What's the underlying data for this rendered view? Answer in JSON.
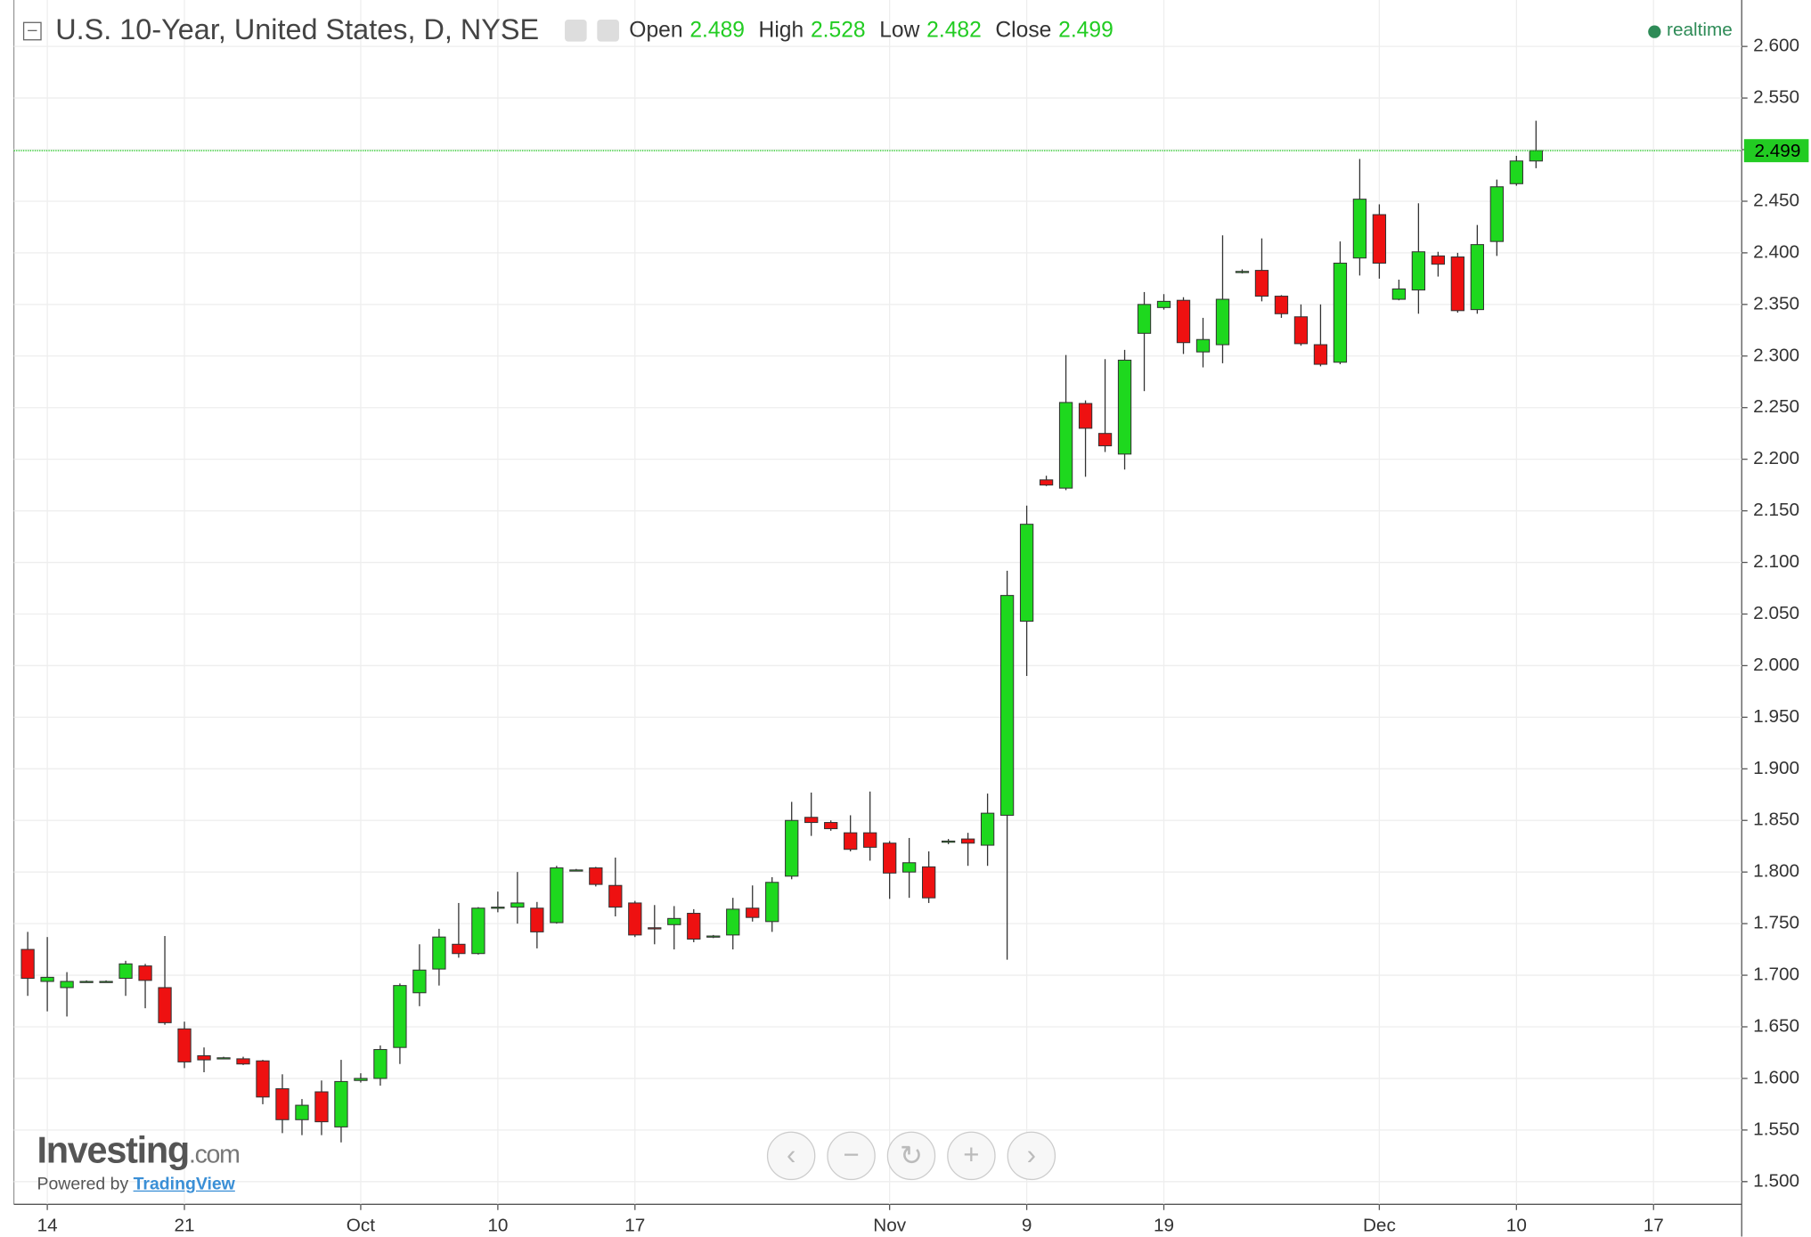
{
  "chart_data": {
    "type": "candlestick",
    "title": "U.S. 10-Year, United States, D, NYSE",
    "ohlc_labels": [
      "Open",
      "High",
      "Low",
      "Close"
    ],
    "status": "realtime",
    "branding": {
      "logo": "Investing",
      "logo_suffix": ".com",
      "powered_by": "Powered by",
      "provider": "TradingView"
    },
    "up_color": "#1ed81e",
    "down_color": "#ee1111",
    "price_line_color": "#22cc22",
    "grid": true,
    "ylim": [
      1.478,
      2.645
    ],
    "yticks": [
      {
        "value": 1.5,
        "label": "1.500"
      },
      {
        "value": 1.55,
        "label": "1.550"
      },
      {
        "value": 1.6,
        "label": "1.600"
      },
      {
        "value": 1.65,
        "label": "1.650"
      },
      {
        "value": 1.7,
        "label": "1.700"
      },
      {
        "value": 1.75,
        "label": "1.750"
      },
      {
        "value": 1.8,
        "label": "1.800"
      },
      {
        "value": 1.85,
        "label": "1.850"
      },
      {
        "value": 1.9,
        "label": "1.900"
      },
      {
        "value": 1.95,
        "label": "1.950"
      },
      {
        "value": 2.0,
        "label": "2.000"
      },
      {
        "value": 2.05,
        "label": "2.050"
      },
      {
        "value": 2.1,
        "label": "2.100"
      },
      {
        "value": 2.15,
        "label": "2.150"
      },
      {
        "value": 2.2,
        "label": "2.200"
      },
      {
        "value": 2.25,
        "label": "2.250"
      },
      {
        "value": 2.3,
        "label": "2.300"
      },
      {
        "value": 2.35,
        "label": "2.350"
      },
      {
        "value": 2.4,
        "label": "2.400"
      },
      {
        "value": 2.45,
        "label": "2.450"
      },
      {
        "value": 2.5,
        "label": "2.500"
      },
      {
        "value": 2.55,
        "label": "2.550"
      },
      {
        "value": 2.6,
        "label": "2.600"
      }
    ],
    "categories": [
      null,
      "14",
      null,
      null,
      null,
      null,
      null,
      null,
      "21",
      null,
      null,
      null,
      null,
      null,
      null,
      null,
      null,
      "Oct",
      null,
      null,
      null,
      null,
      null,
      null,
      "10",
      null,
      null,
      null,
      null,
      null,
      null,
      "17",
      null,
      null,
      null,
      null,
      null,
      null,
      null,
      null,
      null,
      null,
      null,
      null,
      "Nov",
      null,
      null,
      null,
      null,
      null,
      null,
      "9",
      null,
      null,
      null,
      null,
      null,
      null,
      "19",
      null,
      null,
      null,
      null,
      null,
      null,
      null,
      null,
      null,
      null,
      "Dec",
      null,
      null,
      null,
      null,
      null,
      null,
      "10",
      null,
      null,
      null,
      null,
      null,
      null,
      "17"
    ],
    "open": [
      1.725,
      1.694,
      1.688,
      1.694,
      1.694,
      1.697,
      1.709,
      1.688,
      1.648,
      1.622,
      1.619,
      1.619,
      1.617,
      1.59,
      1.56,
      1.587,
      1.553,
      1.598,
      1.6,
      1.63,
      1.683,
      1.706,
      1.73,
      1.721,
      1.765,
      1.766,
      1.765,
      1.751,
      1.801,
      1.804,
      1.787,
      1.77,
      1.746,
      1.749,
      1.76,
      1.737,
      1.739,
      1.765,
      1.752,
      1.796,
      1.853,
      1.848,
      1.838,
      1.838,
      1.828,
      1.8,
      1.805,
      1.829,
      1.832,
      1.826,
      1.855,
      2.043,
      2.18,
      2.172,
      2.254,
      2.225,
      2.205,
      2.322,
      2.347,
      2.354,
      2.304,
      2.311,
      2.381,
      2.383,
      2.358,
      2.338,
      2.311,
      2.294,
      2.395,
      2.437,
      2.355,
      2.364,
      2.397,
      2.396,
      2.345,
      2.411,
      2.467,
      2.489,
      null,
      null,
      null,
      null,
      null,
      null
    ],
    "high": [
      1.742,
      1.737,
      1.703,
      1.695,
      1.695,
      1.714,
      1.711,
      1.738,
      1.655,
      1.63,
      1.621,
      1.621,
      1.618,
      1.604,
      1.58,
      1.598,
      1.618,
      1.605,
      1.632,
      1.692,
      1.73,
      1.745,
      1.77,
      1.766,
      1.781,
      1.8,
      1.771,
      1.806,
      1.803,
      1.805,
      1.814,
      1.772,
      1.768,
      1.767,
      1.764,
      1.739,
      1.775,
      1.787,
      1.795,
      1.868,
      1.877,
      1.85,
      1.855,
      1.878,
      1.83,
      1.833,
      1.82,
      1.832,
      1.838,
      1.876,
      2.092,
      2.155,
      2.184,
      2.301,
      2.257,
      2.297,
      2.306,
      2.362,
      2.36,
      2.357,
      2.337,
      2.417,
      2.384,
      2.414,
      2.359,
      2.35,
      2.35,
      2.411,
      2.491,
      2.447,
      2.374,
      2.448,
      2.401,
      2.4,
      2.427,
      2.471,
      2.494,
      2.528,
      null,
      null,
      null,
      null,
      null,
      null
    ],
    "low": [
      1.68,
      1.665,
      1.66,
      1.693,
      1.693,
      1.68,
      1.668,
      1.652,
      1.61,
      1.606,
      1.619,
      1.613,
      1.575,
      1.547,
      1.545,
      1.545,
      1.538,
      1.596,
      1.593,
      1.614,
      1.67,
      1.69,
      1.717,
      1.72,
      1.761,
      1.75,
      1.726,
      1.75,
      1.801,
      1.786,
      1.757,
      1.737,
      1.73,
      1.725,
      1.732,
      1.736,
      1.725,
      1.752,
      1.742,
      1.793,
      1.835,
      1.84,
      1.82,
      1.811,
      1.774,
      1.775,
      1.77,
      1.827,
      1.806,
      1.806,
      1.715,
      1.99,
      2.174,
      2.17,
      2.183,
      2.207,
      2.19,
      2.266,
      2.345,
      2.302,
      2.289,
      2.293,
      2.38,
      2.353,
      2.337,
      2.31,
      2.29,
      2.292,
      2.378,
      2.375,
      2.354,
      2.341,
      2.377,
      2.342,
      2.341,
      2.397,
      2.465,
      2.482,
      null,
      null,
      null,
      null,
      null,
      null
    ],
    "close": [
      1.697,
      1.698,
      1.694,
      1.694,
      1.694,
      1.711,
      1.695,
      1.654,
      1.616,
      1.618,
      1.62,
      1.614,
      1.582,
      1.56,
      1.574,
      1.558,
      1.597,
      1.6,
      1.628,
      1.69,
      1.705,
      1.737,
      1.721,
      1.765,
      1.766,
      1.77,
      1.742,
      1.804,
      1.802,
      1.788,
      1.766,
      1.739,
      1.745,
      1.755,
      1.735,
      1.738,
      1.764,
      1.756,
      1.79,
      1.85,
      1.848,
      1.842,
      1.822,
      1.824,
      1.799,
      1.809,
      1.775,
      1.83,
      1.828,
      1.857,
      2.068,
      2.137,
      2.175,
      2.255,
      2.23,
      2.213,
      2.296,
      2.35,
      2.353,
      2.313,
      2.316,
      2.355,
      2.382,
      2.358,
      2.341,
      2.312,
      2.292,
      2.39,
      2.452,
      2.39,
      2.365,
      2.401,
      2.389,
      2.344,
      2.408,
      2.464,
      2.489,
      2.499,
      null,
      null,
      null,
      null,
      null,
      null
    ]
  }
}
